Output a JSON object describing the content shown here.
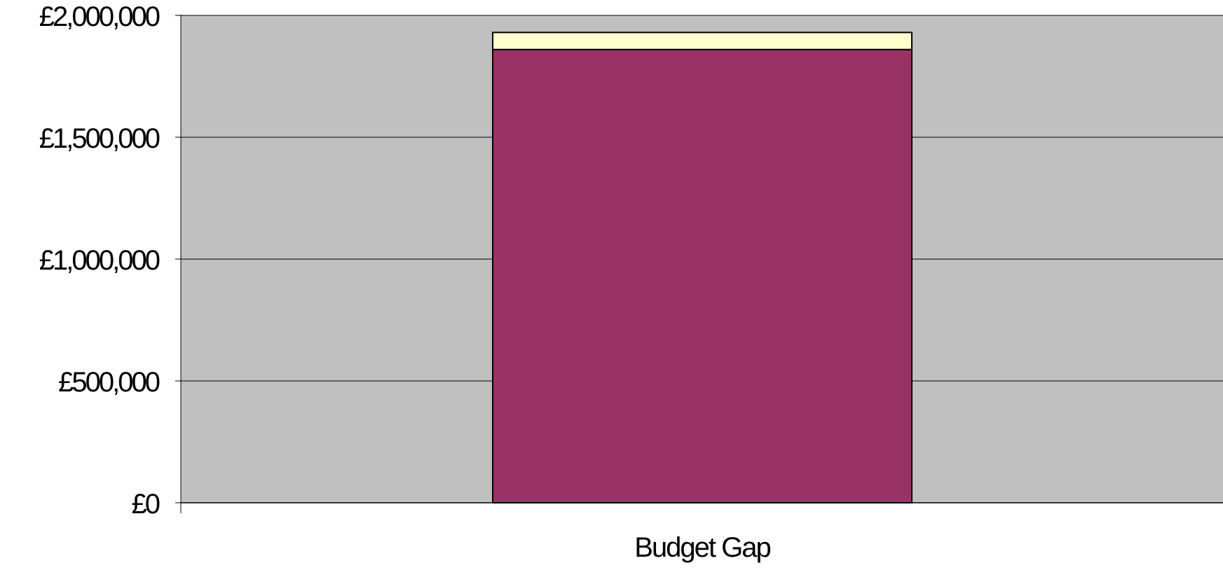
{
  "chart_data": {
    "type": "bar",
    "stacked": true,
    "categories": [
      "Budget Gap"
    ],
    "series": [
      {
        "values": [
          1860000
        ],
        "color": "#993366"
      },
      {
        "values": [
          70000
        ],
        "color": "#FFFFCC"
      }
    ],
    "y_ticks": [
      "£0",
      "£500,000",
      "£1,000,000",
      "£1,500,000",
      "£2,000,000"
    ],
    "ylim": [
      0,
      2000000
    ],
    "grid": true,
    "legend": "none",
    "plot_background": "#C0C0C0"
  }
}
